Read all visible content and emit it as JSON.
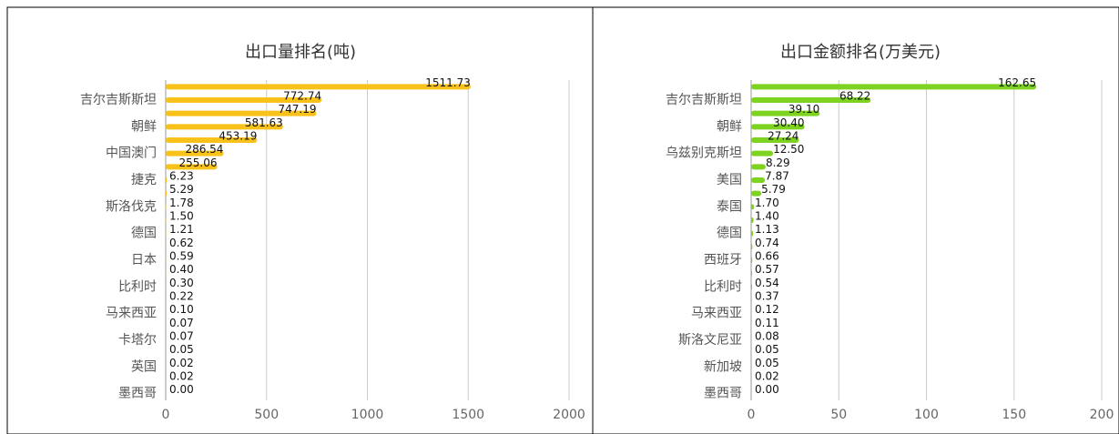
{
  "chart_data": [
    {
      "type": "bar",
      "orientation": "horizontal",
      "title": "出口量排名(吨)",
      "color": "#f8c21b",
      "categories": [
        null,
        "吉尔吉斯斯坦",
        null,
        "朝鲜",
        null,
        "中国澳门",
        null,
        "捷克",
        null,
        "斯洛伐克",
        null,
        "德国",
        null,
        "日本",
        null,
        "比利时",
        null,
        "马来西亚",
        null,
        "卡塔尔",
        null,
        "英国",
        null,
        "墨西哥"
      ],
      "values": [
        1511.73,
        772.74,
        747.19,
        581.63,
        453.19,
        286.54,
        255.06,
        6.23,
        5.29,
        1.78,
        1.5,
        1.21,
        0.62,
        0.59,
        0.4,
        0.3,
        0.22,
        0.1,
        0.07,
        0.07,
        0.05,
        0.02,
        0.02,
        0
      ],
      "value_labels": [
        "1511.73",
        "772.74",
        "747.19",
        "581.63",
        "453.19",
        "286.54",
        "255.06",
        "6.23",
        "5.29",
        "1.78",
        "1.50",
        "1.21",
        "0.62",
        "0.59",
        "0.40",
        "0.30",
        "0.22",
        "0.10",
        "0.07",
        "0.07",
        "0.05",
        "0.02",
        "0.02",
        "0.00"
      ],
      "xlim": [
        0,
        2000
      ],
      "xticks": [
        0,
        500,
        1000,
        1500,
        2000
      ],
      "grid": true
    },
    {
      "type": "bar",
      "orientation": "horizontal",
      "title": "出口金额排名(万美元)",
      "color": "#7ed321",
      "categories": [
        null,
        "吉尔吉斯斯坦",
        null,
        "朝鲜",
        null,
        "乌兹别克斯坦",
        null,
        "美国",
        null,
        "泰国",
        null,
        "德国",
        null,
        "西班牙",
        null,
        "比利时",
        null,
        "马来西亚",
        null,
        "斯洛文尼亚",
        null,
        "新加坡",
        null,
        "墨西哥"
      ],
      "values": [
        162.65,
        68.22,
        39.1,
        30.4,
        27.24,
        12.5,
        8.29,
        7.87,
        5.79,
        1.7,
        1.4,
        1.13,
        0.74,
        0.66,
        0.57,
        0.54,
        0.37,
        0.12,
        0.11,
        0.08,
        0.05,
        0.05,
        0.02,
        0
      ],
      "value_labels": [
        "162.65",
        "68.22",
        "39.10",
        "30.40",
        "27.24",
        "12.50",
        "8.29",
        "7.87",
        "5.79",
        "1.70",
        "1.40",
        "1.13",
        "0.74",
        "0.66",
        "0.57",
        "0.54",
        "0.37",
        "0.12",
        "0.11",
        "0.08",
        "0.05",
        "0.05",
        "0.02",
        "0.00"
      ],
      "xlim": [
        0,
        200
      ],
      "xticks": [
        0,
        50,
        100,
        150,
        200
      ],
      "grid": true
    }
  ]
}
